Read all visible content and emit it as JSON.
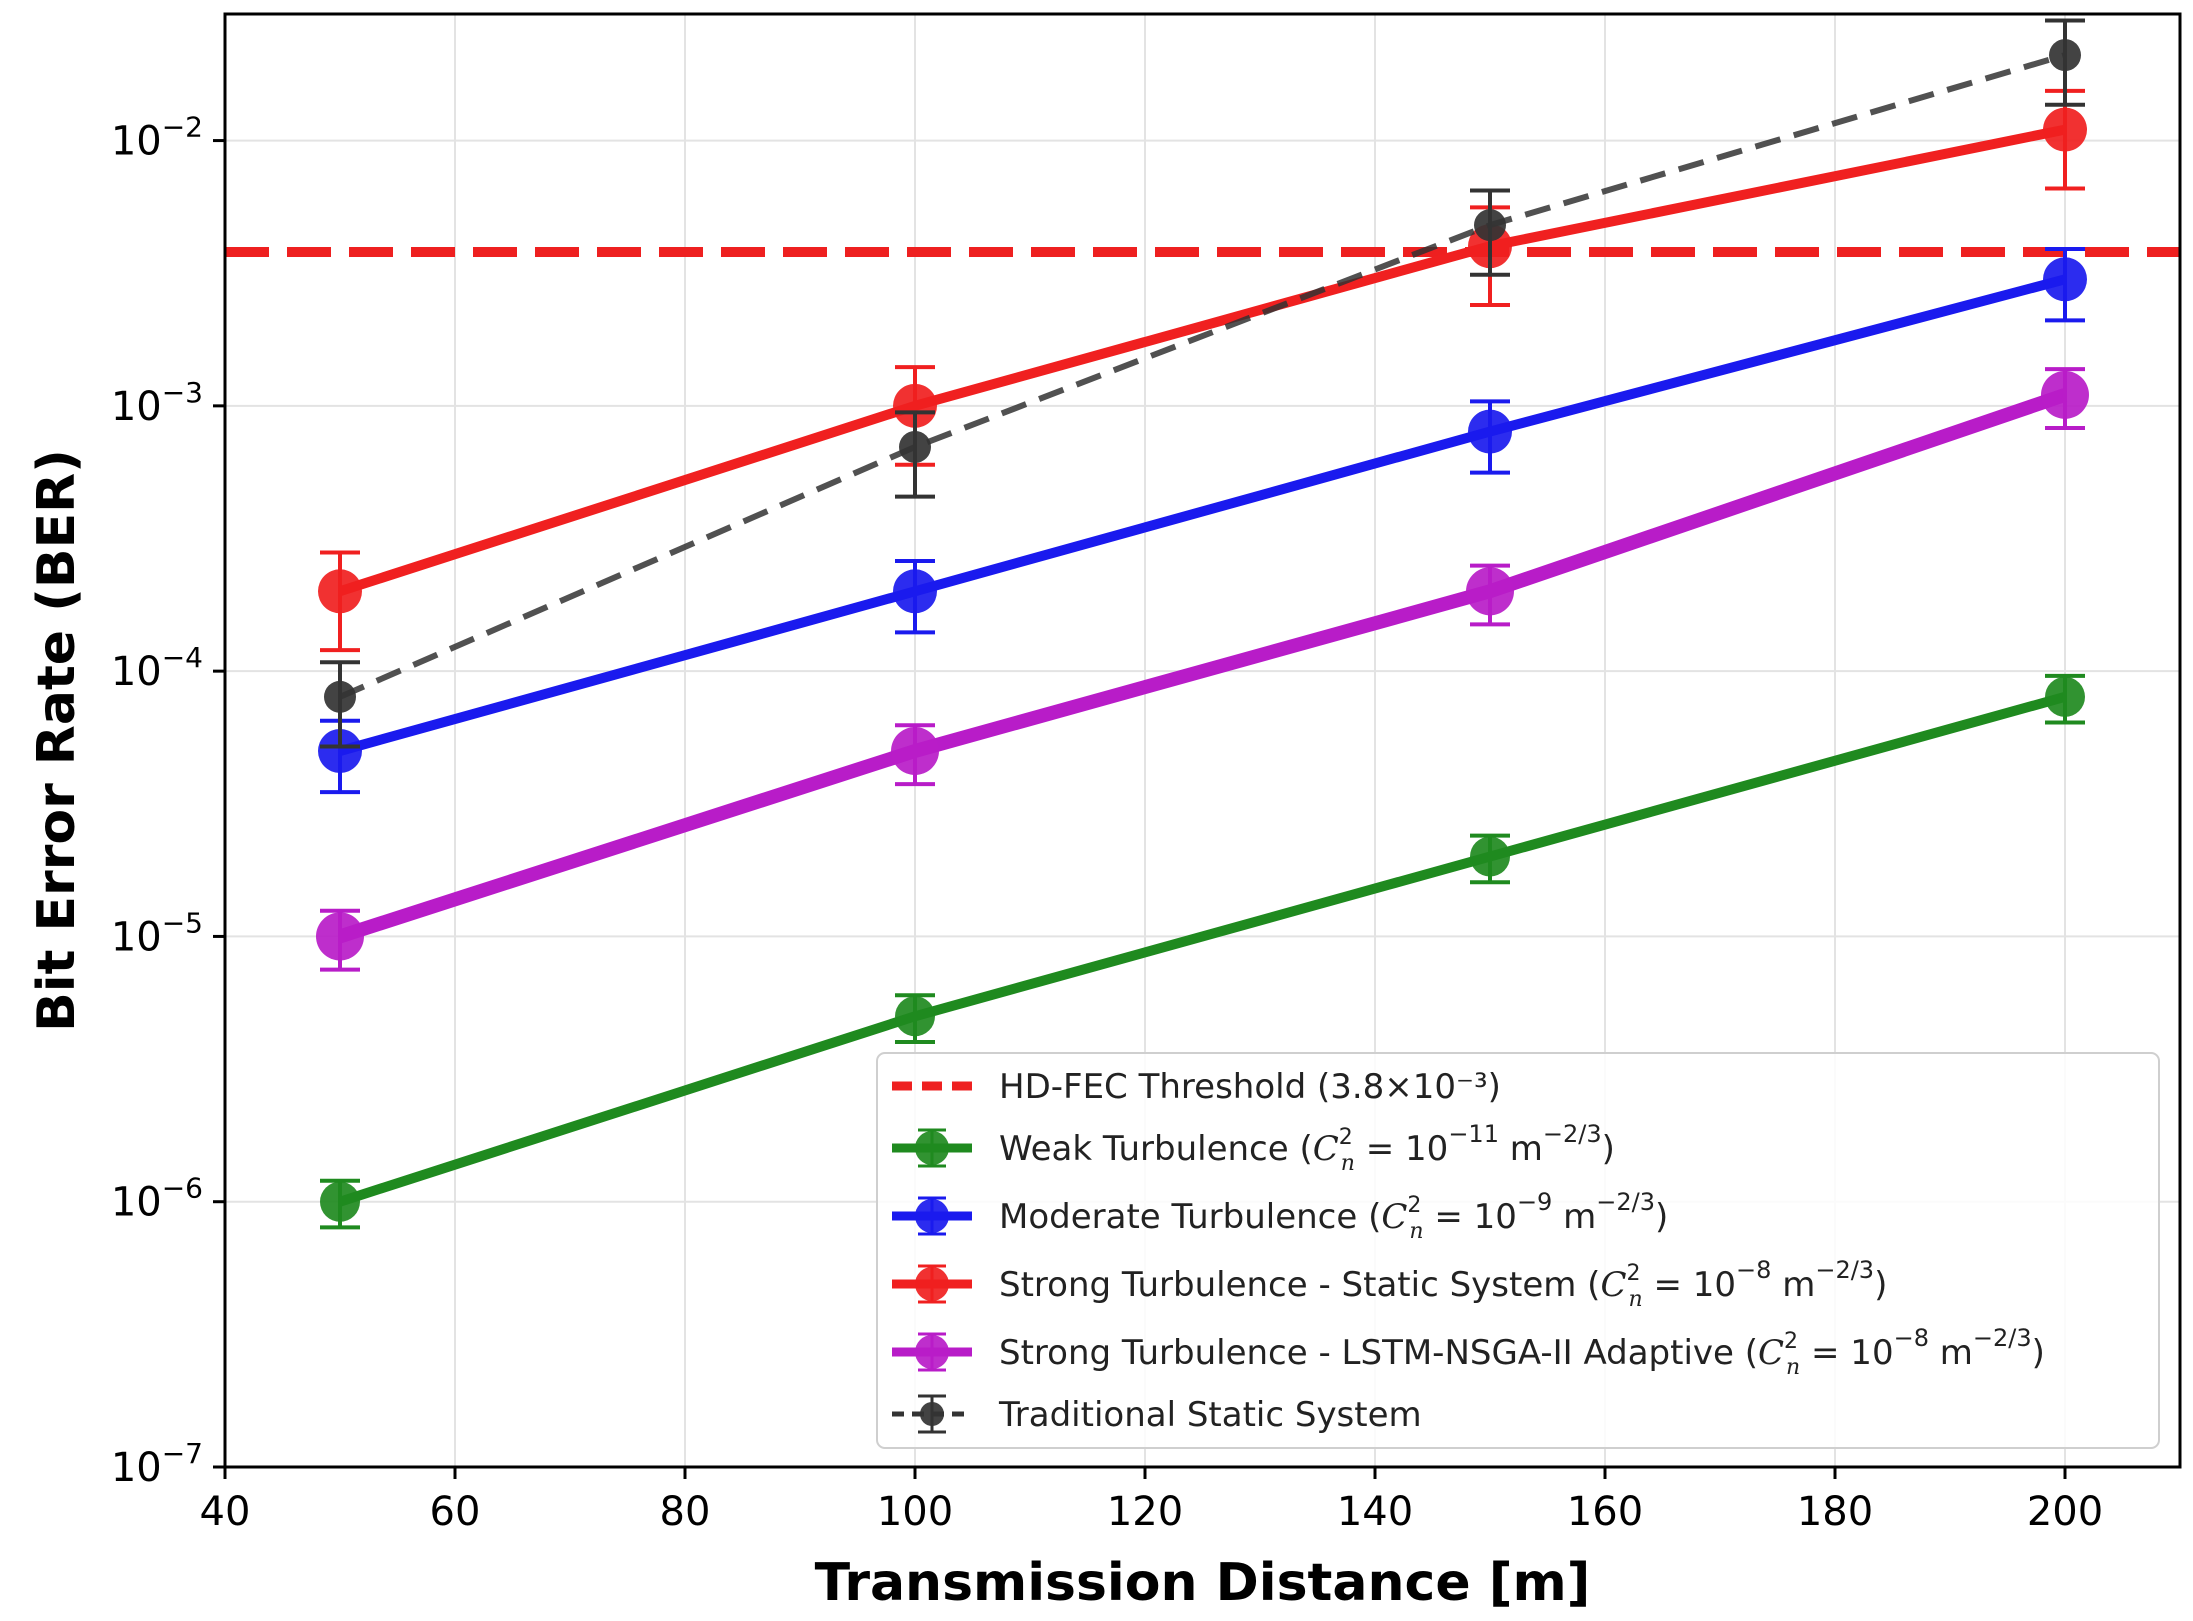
{
  "chart_data": {
    "type": "line",
    "title": "",
    "xlabel": "Transmission Distance [m]",
    "ylabel": "Bit Error Rate (BER)",
    "xlim": [
      40,
      210
    ],
    "ylim": [
      1e-07,
      0.03
    ],
    "yscale": "log",
    "grid": true,
    "legend_position": "lower-right",
    "x_ticks": [
      40,
      60,
      80,
      100,
      120,
      140,
      160,
      180,
      200
    ],
    "x_tick_labels": [
      "40",
      "60",
      "80",
      "100",
      "120",
      "140",
      "160",
      "180",
      "200"
    ],
    "y_ticks": [
      {
        "value": 0.01,
        "base": "10",
        "exp": "−2"
      },
      {
        "value": 0.001,
        "base": "10",
        "exp": "−3"
      },
      {
        "value": 0.0001,
        "base": "10",
        "exp": "−4"
      },
      {
        "value": 1e-05,
        "base": "10",
        "exp": "−5"
      },
      {
        "value": 1e-06,
        "base": "10",
        "exp": "−6"
      },
      {
        "value": 1e-07,
        "base": "10",
        "exp": "−7"
      }
    ],
    "threshold": {
      "name": "HD-FEC Threshold (3.8×10⁻³)",
      "value": 0.0038,
      "color": "#ee2020"
    },
    "x": [
      50,
      100,
      150,
      200
    ],
    "series": [
      {
        "key": "weak",
        "color": "#1f8a1f",
        "style": "solid",
        "label_prefix": "Weak Turbulence (",
        "cn_exp": "−11",
        "values": [
          1e-06,
          5e-06,
          2e-05,
          8e-05
        ],
        "err_low": [
          8e-07,
          4e-06,
          1.6e-05,
          6.4e-05
        ],
        "err_high": [
          1.2e-06,
          6e-06,
          2.4e-05,
          9.6e-05
        ]
      },
      {
        "key": "moderate",
        "color": "#1a1aee",
        "style": "solid",
        "label_prefix": "Moderate Turbulence (",
        "cn_exp": "−9",
        "values": [
          5e-05,
          0.0002,
          0.0008,
          0.003
        ],
        "err_low": [
          3.5e-05,
          0.00014,
          0.00056,
          0.0021
        ],
        "err_high": [
          6.5e-05,
          0.00026,
          0.00104,
          0.0039
        ]
      },
      {
        "key": "strong-static",
        "color": "#f02020",
        "style": "solid",
        "label_prefix": "Strong Turbulence - Static System (",
        "cn_exp": "−8",
        "values": [
          0.0002,
          0.001,
          0.004,
          0.011
        ],
        "err_low": [
          0.00012,
          0.0006,
          0.0024,
          0.0066
        ],
        "err_high": [
          0.00028,
          0.0014,
          0.0056,
          0.0154
        ]
      },
      {
        "key": "strong-adaptive",
        "color": "#b81cc8",
        "style": "solid",
        "label_prefix": "Strong Turbulence - LSTM-NSGA-II Adaptive (",
        "cn_exp": "−8",
        "values": [
          1e-05,
          5e-05,
          0.0002,
          0.0011
        ],
        "err_low": [
          7.5e-06,
          3.75e-05,
          0.00015,
          0.000825
        ],
        "err_high": [
          1.25e-05,
          6.25e-05,
          0.00025,
          0.001375
        ]
      },
      {
        "key": "traditional",
        "color": "#333333",
        "style": "dashed",
        "label": "Traditional Static System",
        "values": [
          8e-05,
          0.0007,
          0.0048,
          0.021
        ],
        "err_low": [
          5.2e-05,
          0.000455,
          0.00312,
          0.01365
        ],
        "err_high": [
          0.000108,
          0.000945,
          0.00648,
          0.02835
        ]
      }
    ],
    "legend_math": {
      "cn": "C",
      "cn_sup": "2",
      "cn_sub": "n",
      "eq": " = 10",
      "unit": " m",
      "unit_exp": "−2/3",
      "close": ")"
    }
  }
}
